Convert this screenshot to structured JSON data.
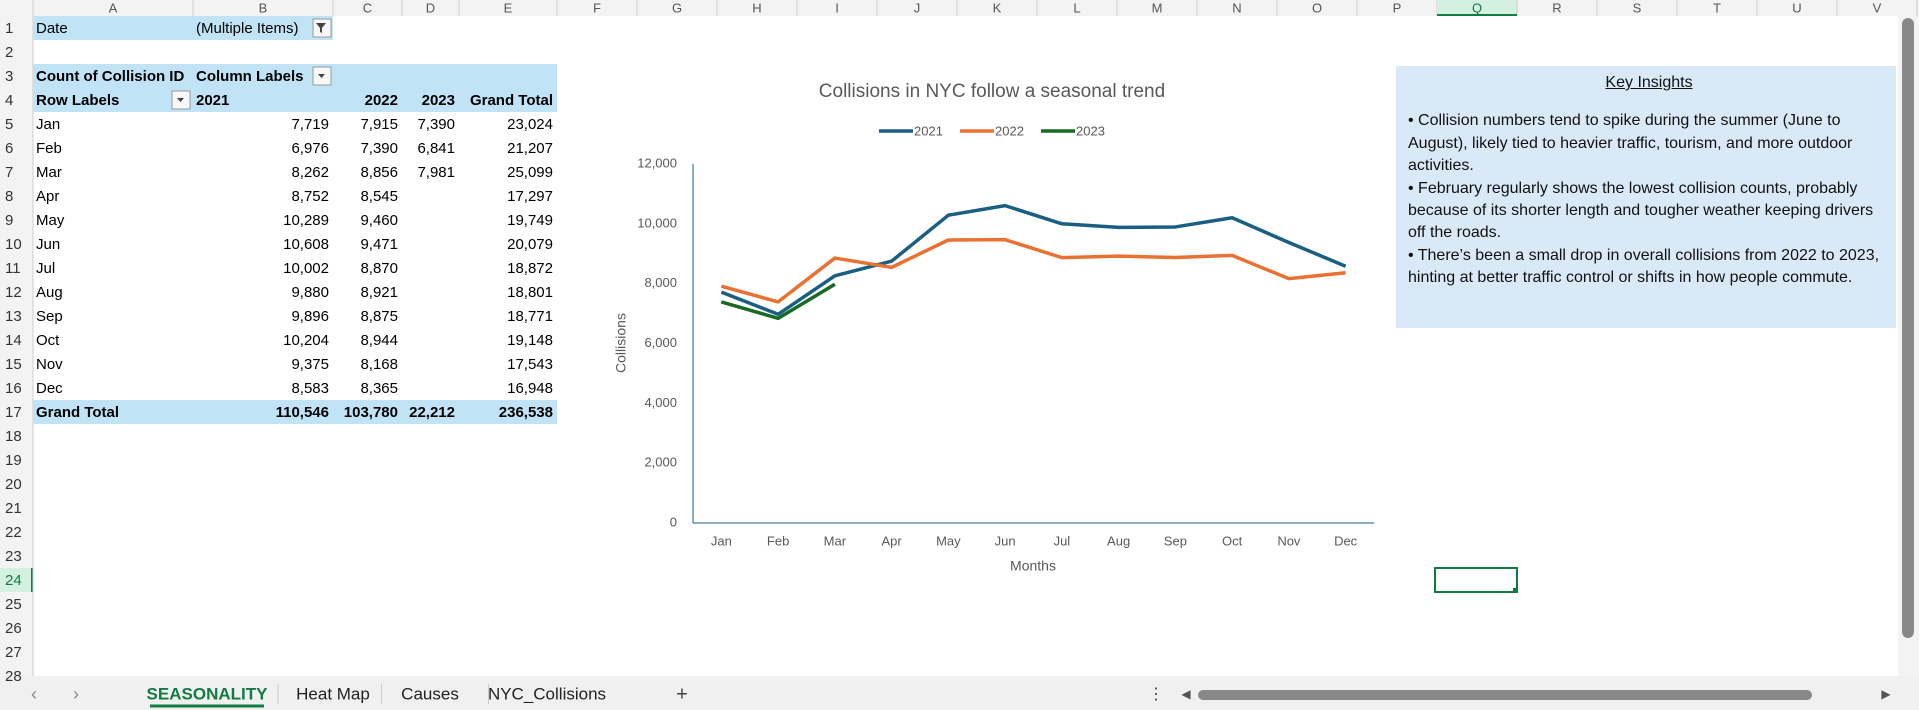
{
  "sheet": {
    "columns": [
      "A",
      "B",
      "C",
      "D",
      "E",
      "F",
      "G",
      "H",
      "I",
      "J",
      "K",
      "L",
      "M",
      "N",
      "O",
      "P",
      "Q",
      "R",
      "S",
      "T",
      "U",
      "V"
    ],
    "row_numbers": [
      1,
      2,
      3,
      4,
      5,
      6,
      7,
      8,
      9,
      10,
      11,
      12,
      13,
      14,
      15,
      16,
      17,
      18,
      19,
      20,
      21,
      22,
      23,
      24,
      25,
      26,
      27,
      28
    ]
  },
  "pivot": {
    "filter": [
      "Date",
      "(Multiple Items)"
    ],
    "header": [
      "Count of Collision ID",
      "Column Labels"
    ],
    "columns_header": [
      "Row Labels",
      "2021",
      "2022",
      "2023",
      "Grand Total"
    ],
    "rows": [
      [
        "Jan",
        "7,719",
        "7,915",
        "7,390",
        "23,024"
      ],
      [
        "Feb",
        "6,976",
        "7,390",
        "6,841",
        "21,207"
      ],
      [
        "Mar",
        "8,262",
        "8,856",
        "7,981",
        "25,099"
      ],
      [
        "Apr",
        "8,752",
        "8,545",
        null,
        "17,297"
      ],
      [
        "May",
        "10,289",
        "9,460",
        null,
        "19,749"
      ],
      [
        "Jun",
        "10,608",
        "9,471",
        null,
        "20,079"
      ],
      [
        "Jul",
        "10,002",
        "8,870",
        null,
        "18,872"
      ],
      [
        "Aug",
        "9,880",
        "8,921",
        null,
        "18,801"
      ],
      [
        "Sep",
        "9,896",
        "8,875",
        null,
        "18,771"
      ],
      [
        "Oct",
        "10,204",
        "8,944",
        null,
        "19,148"
      ],
      [
        "Nov",
        "9,375",
        "8,168",
        null,
        "17,543"
      ],
      [
        "Dec",
        "8,583",
        "8,365",
        null,
        "16,948"
      ]
    ],
    "total": [
      "Grand Total",
      "110,546",
      "103,780",
      "22,212",
      "236,538"
    ]
  },
  "chart_data": {
    "type": "line",
    "title": "Collisions in NYC follow a seasonal trend",
    "x_label": "Months",
    "y_label": "Collisions",
    "categories": [
      "Jan",
      "Feb",
      "Mar",
      "Apr",
      "May",
      "Jun",
      "Jul",
      "Aug",
      "Sep",
      "Oct",
      "Nov",
      "Dec"
    ],
    "series": [
      {
        "name": "2021",
        "color": "#1a5f82",
        "values": [
          7719,
          6976,
          8262,
          8752,
          10289,
          10608,
          10002,
          9880,
          9896,
          10204,
          9375,
          8583
        ]
      },
      {
        "name": "2022",
        "color": "#e97132",
        "values": [
          7915,
          7390,
          8856,
          8545,
          9460,
          9471,
          8870,
          8921,
          8875,
          8944,
          8168,
          8365
        ]
      },
      {
        "name": "2023",
        "color": "#196b24",
        "values": [
          7390,
          6841,
          7981,
          null,
          null,
          null,
          null,
          null,
          null,
          null,
          null,
          null
        ]
      }
    ],
    "ylim": [
      0,
      12000
    ],
    "yticks": [
      0,
      {
        "value": 2000,
        "label": "2,000"
      },
      {
        "value": 4000,
        "label": "4,000"
      },
      {
        "value": 6000,
        "label": "6,000"
      },
      {
        "value": 8000,
        "label": "8,000"
      },
      {
        "value": 10000,
        "label": "10,000"
      },
      {
        "value": 12000,
        "label": "12,000"
      }
    ],
    "grid": false,
    "legend": "top"
  },
  "insights": {
    "title": "Key Insights",
    "bullets": [
      "• Collision numbers tend to spike during the summer (June to August), likely tied to heavier traffic, tourism, and more outdoor activities.",
      "• February regularly shows the lowest collision counts, probably because of its shorter length and tougher weather keeping drivers off the roads.",
      "• There’s been a small drop in overall collisions from 2022 to 2023, hinting at better traffic control or shifts in how people commute."
    ]
  },
  "tabs": [
    "SEASONALITY",
    "Heat Map",
    "Causes",
    "NYC_Collisions"
  ]
}
